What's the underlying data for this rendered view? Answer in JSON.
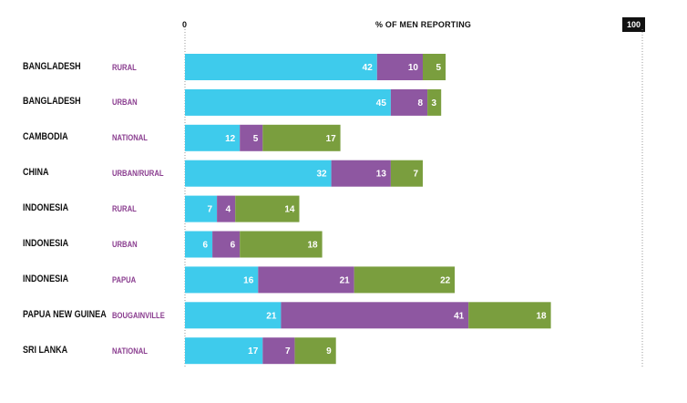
{
  "header": {
    "zero_label": "0",
    "axis_title": "% OF MEN REPORTING",
    "max_label": "100"
  },
  "colors": {
    "series_1": "#3ecbec",
    "series_2": "#8e57a1",
    "series_3": "#7a9e3e",
    "setting_text": "#8a3d8f",
    "dotted_line": "#9a9a9a"
  },
  "chart_data": {
    "type": "bar",
    "orientation": "horizontal",
    "stacked": true,
    "xlim": [
      0,
      100
    ],
    "grid": false,
    "categories": [
      {
        "country": "BANGLADESH",
        "setting": "RURAL"
      },
      {
        "country": "BANGLADESH",
        "setting": "URBAN"
      },
      {
        "country": "CAMBODIA",
        "setting": "NATIONAL"
      },
      {
        "country": "CHINA",
        "setting": "URBAN/RURAL"
      },
      {
        "country": "INDONESIA",
        "setting": "RURAL"
      },
      {
        "country": "INDONESIA",
        "setting": "URBAN"
      },
      {
        "country": "INDONESIA",
        "setting": "PAPUA"
      },
      {
        "country": "PAPUA NEW GUINEA",
        "setting": "BOUGAINVILLE"
      },
      {
        "country": "SRI LANKA",
        "setting": "NATIONAL"
      }
    ],
    "series": [
      {
        "color": "#3ecbec",
        "values": [
          42,
          45,
          12,
          32,
          7,
          6,
          16,
          21,
          17
        ]
      },
      {
        "color": "#8e57a1",
        "values": [
          10,
          8,
          5,
          13,
          4,
          6,
          21,
          41,
          7
        ]
      },
      {
        "color": "#7a9e3e",
        "values": [
          5,
          3,
          17,
          7,
          14,
          18,
          22,
          18,
          9
        ]
      }
    ]
  }
}
